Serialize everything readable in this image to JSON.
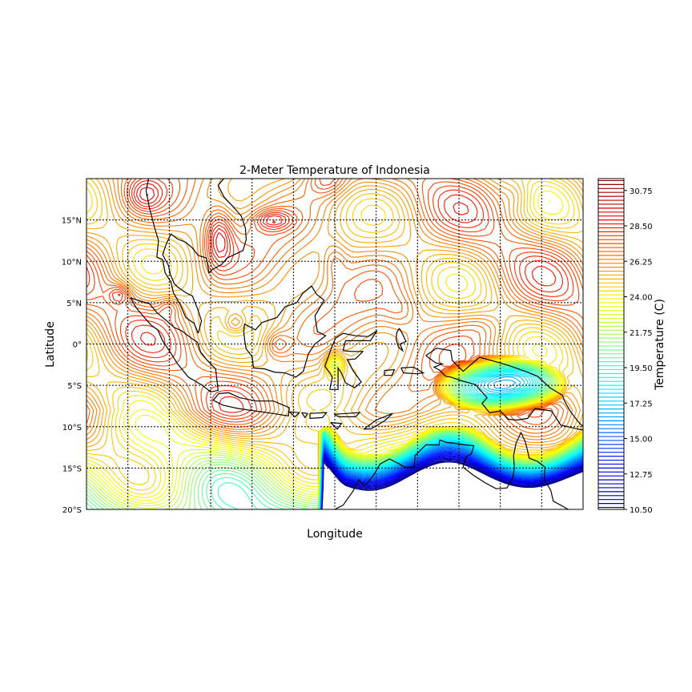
{
  "chart_data": {
    "type": "contour",
    "title": "2-Meter Temperature of Indonesia",
    "xlabel": "Longitude",
    "ylabel": "Latitude",
    "colorbar_label": "Temperature (C)",
    "grid": true,
    "lat_range": [
      -20,
      20
    ],
    "lon_range": [
      90,
      150
    ],
    "lat_ticks": [
      {
        "value": 15,
        "label": "15°N"
      },
      {
        "value": 10,
        "label": "10°N"
      },
      {
        "value": 5,
        "label": "5°N"
      },
      {
        "value": 0,
        "label": "0°"
      },
      {
        "value": -5,
        "label": "5°S"
      },
      {
        "value": -10,
        "label": "10°S"
      },
      {
        "value": -15,
        "label": "15°S"
      },
      {
        "value": -20,
        "label": "20°S"
      }
    ],
    "lon_gridlines": [
      95,
      100,
      105,
      110,
      115,
      120,
      125,
      130,
      135,
      140,
      145
    ],
    "colorbar": {
      "colormap": "jet",
      "min": 10.5,
      "max": 31.5,
      "tick_values": [
        10.5,
        12.75,
        15.0,
        17.25,
        19.5,
        21.75,
        24.0,
        26.25,
        28.5,
        30.75
      ],
      "tick_labels": [
        "10.50",
        "12.75",
        "15.00",
        "17.25",
        "19.50",
        "21.75",
        "24.00",
        "26.25",
        "28.50",
        "30.75"
      ]
    }
  }
}
